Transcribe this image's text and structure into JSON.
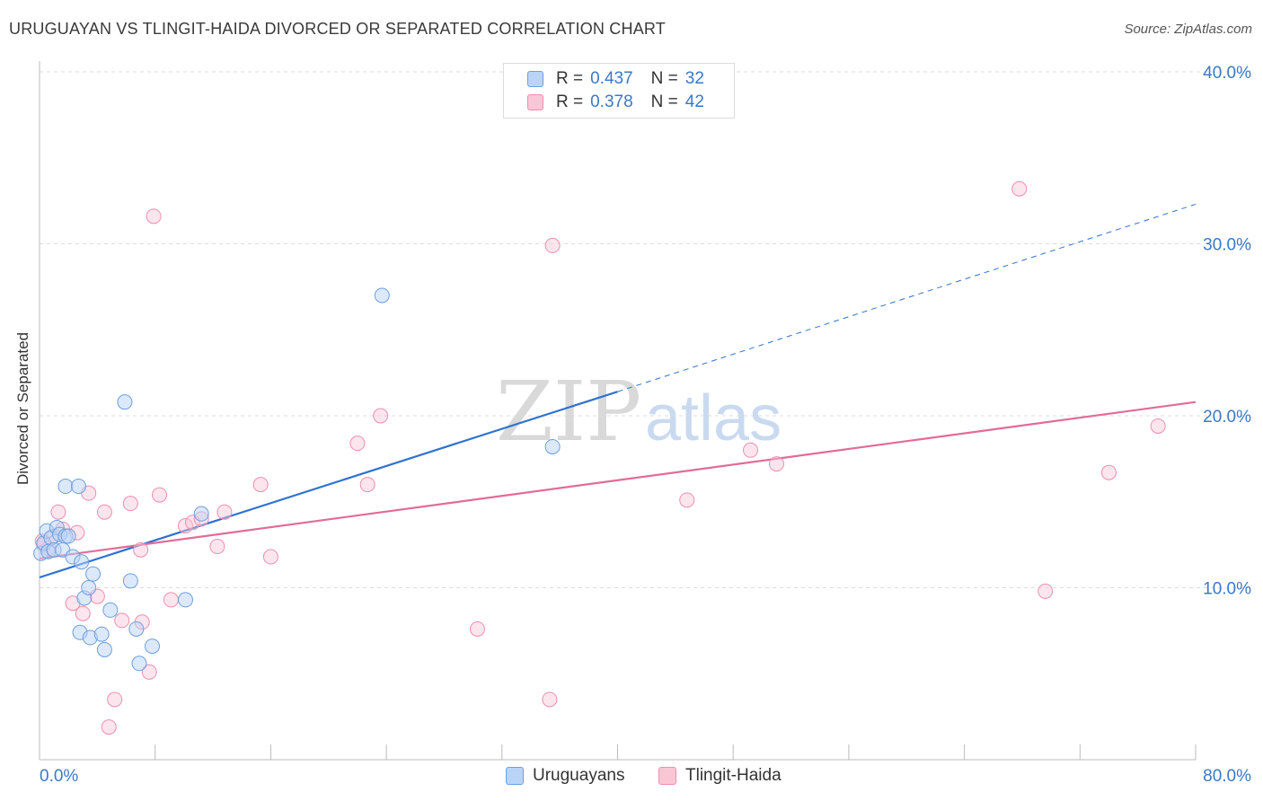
{
  "title": "URUGUAYAN VS TLINGIT-HAIDA DIVORCED OR SEPARATED CORRELATION CHART",
  "source": "Source: ZipAtlas.com",
  "watermark": {
    "zip": "ZIP",
    "atlas": "atlas"
  },
  "legend": {
    "r_label": "R =",
    "n_label": "N =",
    "rows": [
      {
        "r": "0.437",
        "n": "32"
      },
      {
        "r": "0.378",
        "n": "42"
      }
    ]
  },
  "colors": {
    "uruguayans_fill": "#b9d4f7",
    "uruguayans_stroke": "#6d9fdc",
    "uruguayans_line": "#2f72d0",
    "tlingit_fill": "#f9c6d6",
    "tlingit_stroke": "#ea8fae",
    "tlingit_line": "#e26b98",
    "axis_label": "#3a78c9"
  },
  "chart_data": {
    "type": "scatter",
    "title": "URUGUAYAN VS TLINGIT-HAIDA DIVORCED OR SEPARATED CORRELATION CHART",
    "xlabel": "",
    "ylabel": "Divorced or Separated",
    "xlim": [
      0,
      80
    ],
    "ylim": [
      0,
      40
    ],
    "x_tick_labels": [
      "0.0%",
      "80.0%"
    ],
    "y_ticks": [
      10,
      20,
      30,
      40
    ],
    "y_tick_labels": [
      "10.0%",
      "20.0%",
      "30.0%",
      "40.0%"
    ],
    "grid": true,
    "legend_position": "top-center",
    "series": [
      {
        "name": "Uruguayans",
        "r": 0.437,
        "n": 32,
        "points": [
          [
            0.1,
            12.0
          ],
          [
            0.3,
            12.6
          ],
          [
            0.5,
            13.3
          ],
          [
            0.6,
            12.1
          ],
          [
            0.8,
            12.9
          ],
          [
            1.0,
            12.2
          ],
          [
            1.2,
            13.5
          ],
          [
            1.4,
            13.1
          ],
          [
            1.6,
            12.2
          ],
          [
            1.8,
            13.0
          ],
          [
            2.0,
            13.0
          ],
          [
            1.8,
            15.9
          ],
          [
            2.7,
            15.9
          ],
          [
            2.3,
            11.8
          ],
          [
            2.9,
            11.5
          ],
          [
            3.1,
            9.4
          ],
          [
            3.4,
            10.0
          ],
          [
            3.7,
            10.8
          ],
          [
            2.8,
            7.4
          ],
          [
            3.5,
            7.1
          ],
          [
            4.3,
            7.3
          ],
          [
            4.5,
            6.4
          ],
          [
            4.9,
            8.7
          ],
          [
            5.9,
            20.8
          ],
          [
            6.3,
            10.4
          ],
          [
            6.7,
            7.6
          ],
          [
            6.9,
            5.6
          ],
          [
            7.8,
            6.6
          ],
          [
            11.2,
            14.3
          ],
          [
            10.1,
            9.3
          ],
          [
            23.7,
            27.0
          ],
          [
            35.5,
            18.2
          ]
        ]
      },
      {
        "name": "Tlingit-Haida",
        "r": 0.378,
        "n": 42,
        "points": [
          [
            0.3,
            12.5
          ],
          [
            0.6,
            12.3
          ],
          [
            1.0,
            13.0
          ],
          [
            1.3,
            14.4
          ],
          [
            1.6,
            13.4
          ],
          [
            2.3,
            9.1
          ],
          [
            2.6,
            13.2
          ],
          [
            3.0,
            8.5
          ],
          [
            3.4,
            15.5
          ],
          [
            4.0,
            9.5
          ],
          [
            4.5,
            14.4
          ],
          [
            4.8,
            1.9
          ],
          [
            5.2,
            3.5
          ],
          [
            5.7,
            8.1
          ],
          [
            6.3,
            14.9
          ],
          [
            7.0,
            12.2
          ],
          [
            7.1,
            8.0
          ],
          [
            7.6,
            5.1
          ],
          [
            7.9,
            31.6
          ],
          [
            8.3,
            15.4
          ],
          [
            9.1,
            9.3
          ],
          [
            10.1,
            13.6
          ],
          [
            10.6,
            13.8
          ],
          [
            11.2,
            14.0
          ],
          [
            12.3,
            12.4
          ],
          [
            12.8,
            14.4
          ],
          [
            15.3,
            16.0
          ],
          [
            16.0,
            11.8
          ],
          [
            22.0,
            18.4
          ],
          [
            22.7,
            16.0
          ],
          [
            23.6,
            20.0
          ],
          [
            30.3,
            7.6
          ],
          [
            35.3,
            3.5
          ],
          [
            35.5,
            29.9
          ],
          [
            44.8,
            15.1
          ],
          [
            49.2,
            18.0
          ],
          [
            51.0,
            17.2
          ],
          [
            67.8,
            33.2
          ],
          [
            69.6,
            9.8
          ],
          [
            74.0,
            16.7
          ],
          [
            77.4,
            19.4
          ],
          [
            0.2,
            12.7
          ]
        ]
      }
    ],
    "trend_lines": [
      {
        "series": "Uruguayans",
        "x1": 0,
        "y1": 10.6,
        "x2": 40,
        "y2": 21.4,
        "dashed_to_x": 80,
        "dashed_to_y": 32.3
      },
      {
        "series": "Tlingit-Haida",
        "x1": 0,
        "y1": 11.7,
        "x2": 80,
        "y2": 20.8
      }
    ]
  }
}
